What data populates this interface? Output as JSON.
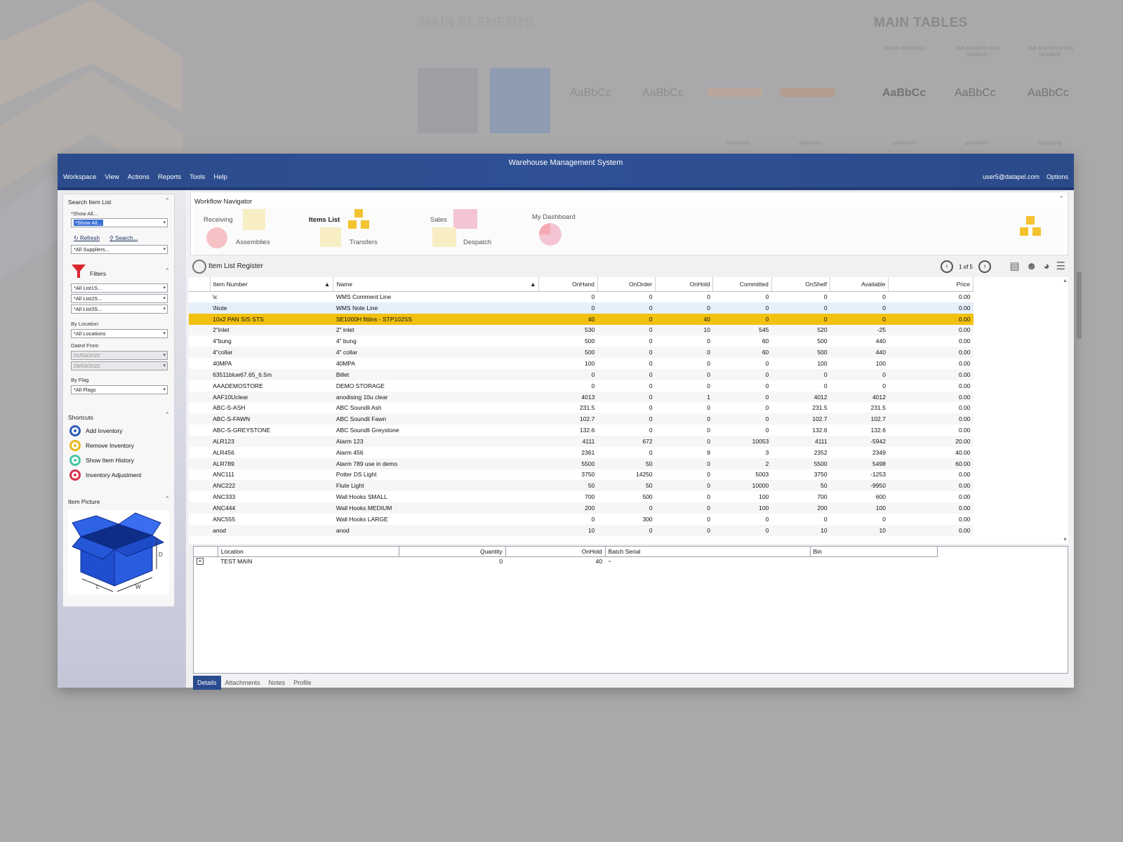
{
  "background": {
    "main_elements": "MAIN ELEMENTS",
    "main_tables": "MAIN TABLES",
    "table_sample_text": "AaBbCc",
    "table_col_heads": [
      "TABLE HEADINGS",
      "TABLE ROWS ODD NUMBER",
      "TABLE ROWS EVEN NUMBER"
    ],
    "table_hex": [
      "#FFFFFF",
      "#FFFFFF",
      "#F5F5F8"
    ],
    "elements_hex": [
      "#FFFFFF",
      "#FFFFFF"
    ]
  },
  "window": {
    "title": "Warehouse Management System",
    "menu": [
      "Workspace",
      "View",
      "Actions",
      "Reports",
      "Tools",
      "Help"
    ],
    "user": "user5@datapel.com",
    "options": "Options"
  },
  "sidebar": {
    "search_title": "Search Item List",
    "show_all_label": "*Show All...",
    "show_all_value": "*Show All...",
    "refresh": "Refresh",
    "search": "Search...",
    "suppliers": "*All Suppliers...",
    "filters_title": "Filters",
    "lists": [
      "*All List1S...",
      "*All List2S...",
      "*All List3S..."
    ],
    "by_location": "By Location",
    "locations": "*All Locations",
    "dated_from": "Dated From",
    "date_from": "01/03/2022",
    "date_to": "29/03/2022",
    "by_flag": "By Flag",
    "flags": "*All Flags",
    "shortcuts_title": "Shortcuts",
    "shortcuts": [
      {
        "label": "Add Inventory",
        "color": "#2f5db8"
      },
      {
        "label": "Remove Inventory",
        "color": "#e9b91c"
      },
      {
        "label": "Show Item History",
        "color": "#48c4a4"
      },
      {
        "label": "Inventory Adjustment",
        "color": "#d8324a"
      }
    ],
    "picture_title": "Item Picture",
    "box_dims": [
      "L",
      "W",
      "D"
    ]
  },
  "navigator": {
    "title": "Workflow Navigator",
    "receiving": "Receiving",
    "assemblies": "Assemblies",
    "items_list": "Items List",
    "transfers": "Transfers",
    "sales": "Sales",
    "despatch": "Despatch",
    "dashboard": "My Dashboard"
  },
  "register": {
    "title": "Item List Register",
    "page": "1 of 5",
    "columns": [
      "Item Number",
      "Name",
      "OnHand",
      "OnOrder",
      "OnHold",
      "Committed",
      "OnShelf",
      "Available",
      "Price"
    ],
    "rows": [
      [
        "\\c",
        "WMS Comment Line",
        "0",
        "0",
        "0",
        "0",
        "0",
        "0",
        "0.00"
      ],
      [
        "\\Note",
        "WMS Note Line",
        "0",
        "0",
        "0",
        "0",
        "0",
        "0",
        "0.00"
      ],
      [
        "10x2 PAN S/S STS",
        "SE1000H fittins - STP102SS",
        "40",
        "0",
        "40",
        "0",
        "0",
        "0",
        "0.00"
      ],
      [
        "2\"inlet",
        "2\" inlet",
        "530",
        "0",
        "10",
        "545",
        "520",
        "-25",
        "0.00"
      ],
      [
        "4\"bung",
        "4\" bung",
        "500",
        "0",
        "0",
        "60",
        "500",
        "440",
        "0.00"
      ],
      [
        "4\"collar",
        "4\" collar",
        "500",
        "0",
        "0",
        "60",
        "500",
        "440",
        "0.00"
      ],
      [
        "40MPA",
        "40MPA",
        "100",
        "0",
        "0",
        "0",
        "100",
        "100",
        "0.00"
      ],
      [
        "63511blue67.65_6.5m",
        "Billet",
        "0",
        "0",
        "0",
        "0",
        "0",
        "0",
        "0.00"
      ],
      [
        "AAADEMOSTORE",
        "DEMO STORAGE",
        "0",
        "0",
        "0",
        "0",
        "0",
        "0",
        "0.00"
      ],
      [
        "AAF10Uclear",
        "anodising 10u clear",
        "4013",
        "0",
        "1",
        "0",
        "4012",
        "4012",
        "0.00"
      ],
      [
        "ABC-S-ASH",
        "ABC Soundli Ash",
        "231.5",
        "0",
        "0",
        "0",
        "231.5",
        "231.5",
        "0.00"
      ],
      [
        "ABC-S-FAWN",
        "ABC Soundli Fawn",
        "102.7",
        "0",
        "0",
        "0",
        "102.7",
        "102.7",
        "0.00"
      ],
      [
        "ABC-S-GREYSTONE",
        "ABC Soundli Greystone",
        "132.6",
        "0",
        "0",
        "0",
        "132.6",
        "132.6",
        "0.00"
      ],
      [
        "ALR123",
        "Alarm 123",
        "4111",
        "672",
        "0",
        "10053",
        "4111",
        "-5942",
        "20.00"
      ],
      [
        "ALR456",
        "Alarm 456",
        "2361",
        "0",
        "9",
        "3",
        "2352",
        "2349",
        "40.00"
      ],
      [
        "ALR789",
        "Alarm 789 use in demo",
        "5500",
        "50",
        "0",
        "2",
        "5500",
        "5498",
        "60.00"
      ],
      [
        "ANC111",
        "Potter DS Light",
        "3750",
        "14250",
        "0",
        "5003",
        "3750",
        "-1253",
        "0.00"
      ],
      [
        "ANC222",
        "Flute Light",
        "50",
        "50",
        "0",
        "10000",
        "50",
        "-9950",
        "0.00"
      ],
      [
        "ANC333",
        "Wall Hooks SMALL",
        "700",
        "500",
        "0",
        "100",
        "700",
        "600",
        "0.00"
      ],
      [
        "ANC444",
        "Wall Hooks MEDIUM",
        "200",
        "0",
        "0",
        "100",
        "200",
        "100",
        "0.00"
      ],
      [
        "ANC555",
        "Wall Hooks LARGE",
        "0",
        "300",
        "0",
        "0",
        "0",
        "0",
        "0.00"
      ],
      [
        "anod",
        "anod",
        "10",
        "0",
        "0",
        "0",
        "10",
        "10",
        "0.00"
      ]
    ]
  },
  "detail": {
    "columns": [
      "Location",
      "Quantity",
      "OnHold",
      "Batch Serial",
      "Bin"
    ],
    "row": [
      "TEST MAIN",
      "0",
      "40",
      "~",
      ""
    ],
    "tabs": [
      "Details",
      "Attachments",
      "Notes",
      "Profile"
    ]
  }
}
